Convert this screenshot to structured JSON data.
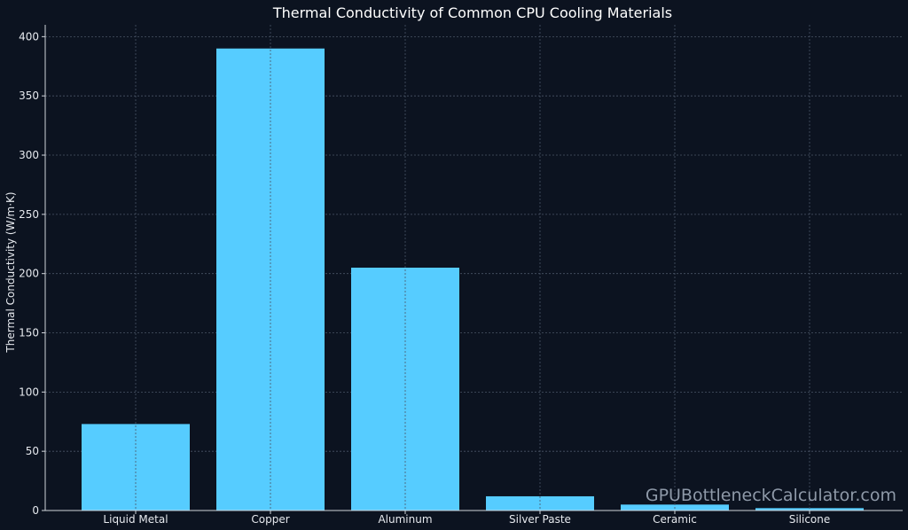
{
  "chart_data": {
    "type": "bar",
    "title": "Thermal Conductivity of Common CPU Cooling Materials",
    "xlabel": "",
    "ylabel": "Thermal Conductivity (W/m·K)",
    "categories": [
      "Liquid Metal",
      "Copper",
      "Aluminum",
      "Silver Paste",
      "Ceramic",
      "Silicone"
    ],
    "values": [
      73,
      390,
      205,
      12,
      5,
      2
    ],
    "ylim": [
      0,
      410
    ],
    "yticks": [
      0,
      50,
      100,
      150,
      200,
      250,
      300,
      350,
      400
    ],
    "grid": true,
    "bar_color": "#56ccff"
  },
  "watermark": "GPUBottleneckCalculator.com",
  "colors": {
    "background": "#0c1320",
    "grid": "#4a5566",
    "axis": "#d0d4da"
  }
}
